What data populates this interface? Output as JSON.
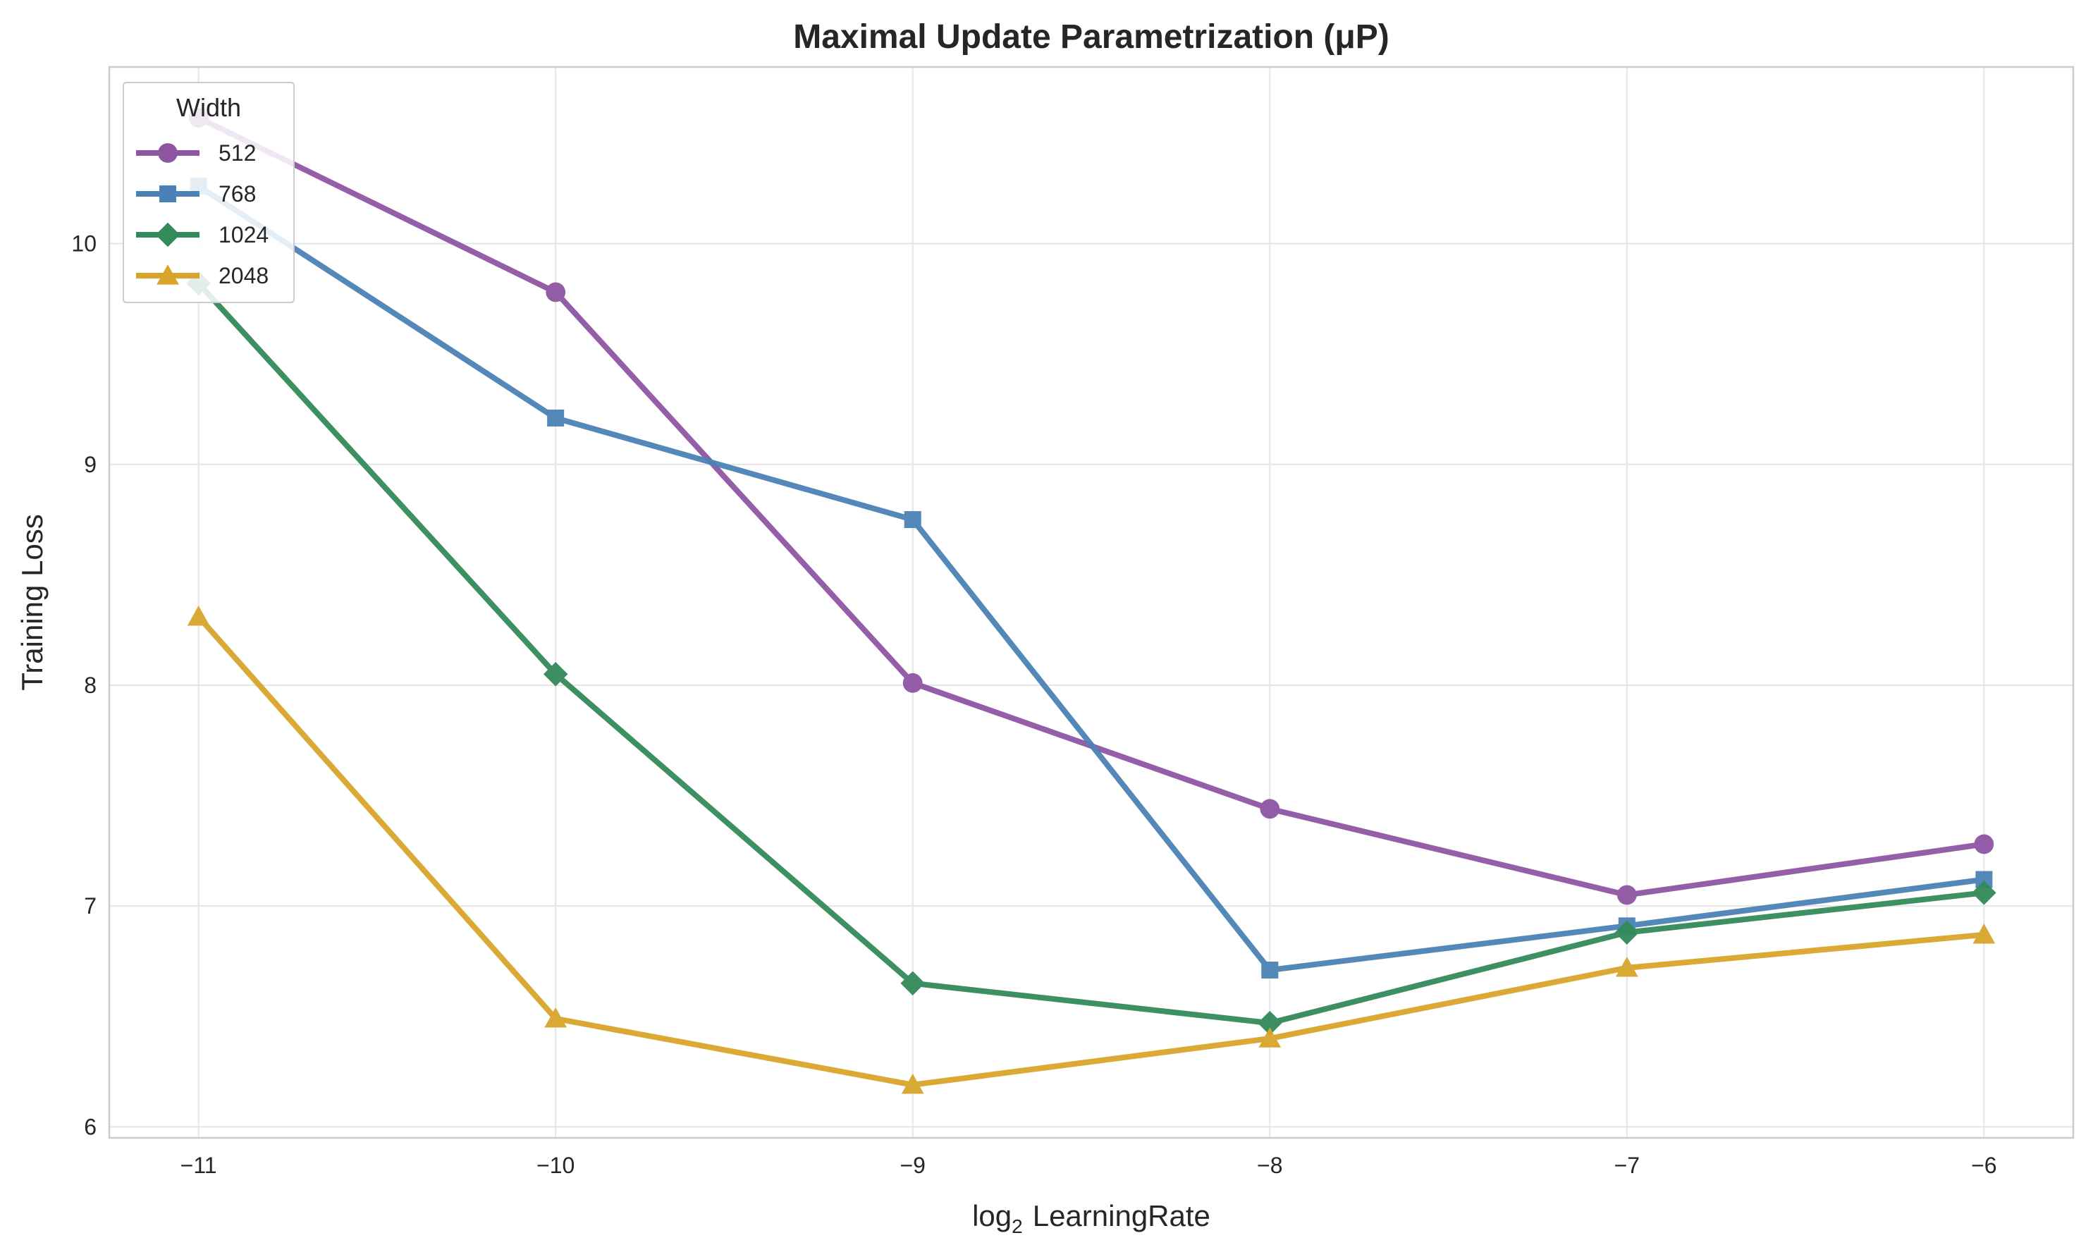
{
  "chart_data": {
    "type": "line",
    "title": "Maximal Update Parametrization (μP)",
    "xlabel_main": "log",
    "xlabel_sub": "2",
    "xlabel_rest": "LearningRate",
    "ylabel": "Training Loss",
    "x": [
      -11,
      -10,
      -9,
      -8,
      -7,
      -6
    ],
    "x_tick_labels": [
      "−11",
      "−10",
      "−9",
      "−8",
      "−7",
      "−6"
    ],
    "y_ticks": [
      6,
      7,
      8,
      9,
      10
    ],
    "y_tick_labels": [
      "6",
      "7",
      "8",
      "9",
      "10"
    ],
    "xlim": [
      -11.25,
      -5.75
    ],
    "ylim": [
      5.95,
      10.8
    ],
    "grid": true,
    "legend_title": "Width",
    "legend_position": "top-left",
    "series": [
      {
        "name": "512",
        "color": "#8e55a3",
        "marker": "circle",
        "values": [
          10.57,
          9.78,
          8.01,
          7.44,
          7.05,
          7.28
        ]
      },
      {
        "name": "768",
        "color": "#4a82b5",
        "marker": "square",
        "values": [
          10.26,
          9.21,
          8.75,
          6.71,
          6.91,
          7.12
        ]
      },
      {
        "name": "1024",
        "color": "#338a5a",
        "marker": "diamond",
        "values": [
          9.82,
          8.05,
          6.65,
          6.47,
          6.88,
          7.06
        ]
      },
      {
        "name": "2048",
        "color": "#d9a42a",
        "marker": "triangle",
        "values": [
          8.31,
          6.49,
          6.19,
          6.4,
          6.72,
          6.87
        ]
      }
    ]
  }
}
